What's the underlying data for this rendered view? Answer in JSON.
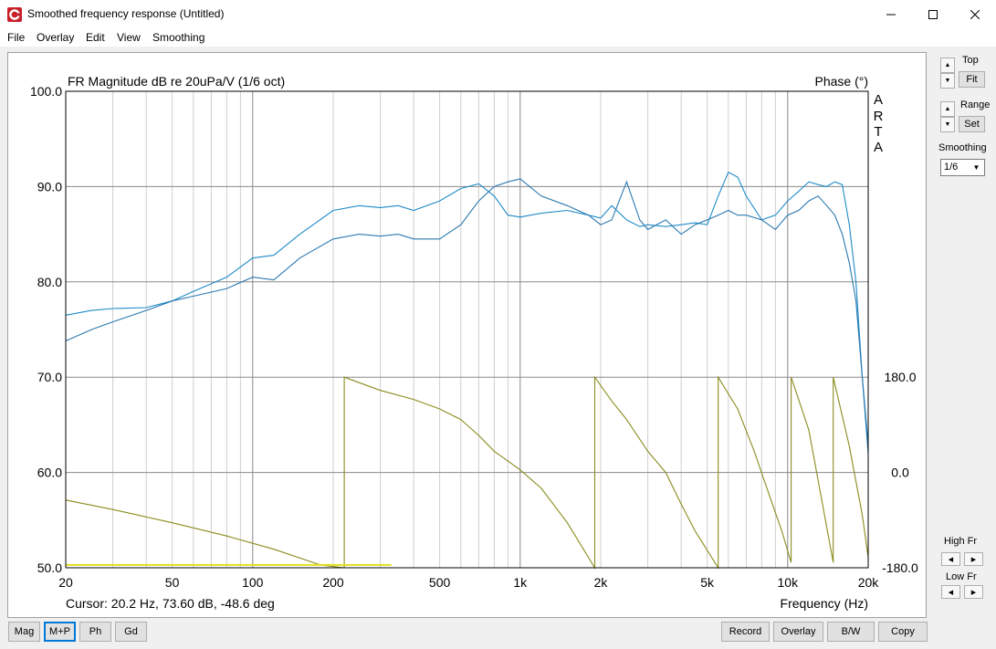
{
  "window": {
    "title": "Smoothed frequency response (Untitled)",
    "minimize_icon": "minimize-icon",
    "maximize_icon": "maximize-icon",
    "close_icon": "close-icon"
  },
  "menu": [
    "File",
    "Overlay",
    "Edit",
    "View",
    "Smoothing"
  ],
  "plot": {
    "title": "FR Magnitude dB re 20uPa/V (1/6 oct)",
    "phase_title": "Phase (°)",
    "brand": [
      "A",
      "R",
      "T",
      "A"
    ],
    "x_axis_label": "Frequency (Hz)",
    "cursor_text": "Cursor: 20.2 Hz, 73.60 dB, -48.6 deg"
  },
  "chart_data": {
    "type": "line",
    "xscale": "log",
    "xlim": [
      20,
      20000
    ],
    "ylim": [
      50,
      100
    ],
    "y2lim": [
      -180,
      180
    ],
    "grid": true,
    "x_ticks": [
      "20",
      "50",
      "100",
      "200",
      "500",
      "1k",
      "2k",
      "5k",
      "10k",
      "20k"
    ],
    "y_ticks": [
      "50.0",
      "60.0",
      "70.0",
      "80.0",
      "90.0",
      "100.0"
    ],
    "y2_ticks": [
      "-180.0",
      "0.0",
      "180.0"
    ],
    "series": [
      {
        "color": "#1f8bc8",
        "x": [
          20,
          25,
          30,
          40,
          50,
          60,
          80,
          100,
          120,
          150,
          200,
          250,
          300,
          350,
          400,
          500,
          600,
          700,
          800,
          900,
          1000,
          1200,
          1500,
          1800,
          2000,
          2200,
          2500,
          2800,
          3000,
          3500,
          4000,
          4500,
          5000,
          5500,
          6000,
          6500,
          7000,
          8000,
          9000,
          10000,
          11000,
          12000,
          13000,
          14000,
          15000,
          16000,
          17000,
          18000,
          19000,
          20000
        ],
        "y": [
          76.5,
          77.0,
          77.2,
          77.3,
          78.0,
          79.0,
          80.5,
          82.5,
          82.8,
          85.0,
          87.5,
          88.0,
          87.8,
          88.0,
          87.5,
          88.5,
          89.8,
          90.3,
          89.0,
          87.0,
          86.8,
          87.2,
          87.5,
          87.0,
          86.7,
          88.0,
          86.5,
          85.8,
          86.0,
          85.8,
          86.0,
          86.2,
          86.0,
          89.0,
          91.5,
          91.0,
          89.0,
          86.5,
          87.0,
          88.5,
          89.5,
          90.5,
          90.2,
          90.0,
          90.5,
          90.2,
          86.0,
          80.0,
          70.0,
          63.0
        ]
      },
      {
        "color": "#2a79b0",
        "x": [
          20,
          25,
          30,
          40,
          50,
          60,
          80,
          100,
          120,
          150,
          200,
          250,
          300,
          350,
          400,
          500,
          600,
          700,
          800,
          900,
          1000,
          1200,
          1500,
          1800,
          2000,
          2200,
          2500,
          2800,
          3000,
          3500,
          4000,
          4500,
          5000,
          5500,
          6000,
          6500,
          7000,
          8000,
          9000,
          10000,
          11000,
          12000,
          13000,
          14000,
          15000,
          16000,
          17000,
          18000,
          19000,
          20000
        ],
        "y": [
          73.8,
          75.0,
          75.8,
          77.0,
          78.0,
          78.5,
          79.3,
          80.5,
          80.2,
          82.5,
          84.5,
          85.0,
          84.8,
          85.0,
          84.5,
          84.5,
          86.0,
          88.5,
          90.0,
          90.5,
          90.8,
          89.0,
          88.0,
          87.0,
          86.0,
          86.5,
          90.5,
          86.5,
          85.5,
          86.5,
          85.0,
          86.0,
          86.5,
          87.0,
          87.5,
          87.0,
          87.0,
          86.5,
          85.5,
          87.0,
          87.5,
          88.5,
          89.0,
          88.0,
          87.0,
          85.0,
          82.0,
          78.0,
          70.0,
          62.0
        ]
      },
      {
        "color": "#8b8b1f",
        "axis": "phase",
        "x": [
          20,
          30,
          50,
          80,
          120,
          180,
          220,
          220,
          300,
          400,
          500,
          600,
          700,
          800,
          1000,
          1200,
          1500,
          1900,
          1900,
          2200,
          2500,
          3000,
          3500,
          4000,
          4500,
          5500,
          5500,
          6500,
          7500,
          8500,
          9500,
          10300,
          10300,
          12000,
          14800,
          14800,
          17000,
          19000,
          20000
        ],
        "y": [
          -52,
          -70,
          -95,
          -120,
          -145,
          -175,
          -180,
          180,
          155,
          138,
          120,
          100,
          70,
          40,
          5,
          -30,
          -95,
          -180,
          180,
          135,
          100,
          40,
          0,
          -60,
          -110,
          -180,
          180,
          120,
          40,
          -40,
          -110,
          -170,
          180,
          80,
          -170,
          180,
          50,
          -80,
          -160
        ]
      },
      {
        "color": "#e0e020",
        "x": [
          20,
          330
        ],
        "y": [
          50.3,
          50.3
        ]
      }
    ]
  },
  "sidebar": {
    "top_label": "Top",
    "fit_label": "Fit",
    "range_label": "Range",
    "set_label": "Set",
    "smoothing_label": "Smoothing",
    "smoothing_value": "1/6",
    "high_fr_label": "High Fr",
    "low_fr_label": "Low Fr"
  },
  "footer": {
    "left_buttons": [
      "Mag",
      "M+P",
      "Ph",
      "Gd"
    ],
    "right_buttons": [
      "Record",
      "Overlay",
      "B/W",
      "Copy"
    ]
  }
}
